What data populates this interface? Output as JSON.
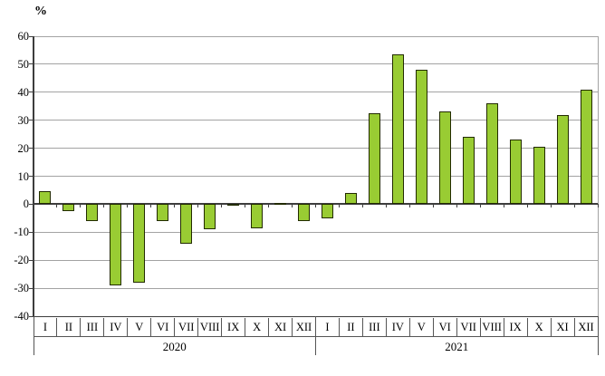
{
  "chart": {
    "unit_label": "%"
  },
  "chart_data": {
    "type": "bar",
    "title": "",
    "ylabel": "%",
    "xlabel": "",
    "ylim": [
      -40,
      60
    ],
    "yticks": [
      60,
      50,
      40,
      30,
      20,
      10,
      0,
      -10,
      -20,
      -30,
      -40
    ],
    "grid": true,
    "legend": "none",
    "categories": [
      "I",
      "II",
      "III",
      "IV",
      "V",
      "VI",
      "VII",
      "VIII",
      "IX",
      "X",
      "XI",
      "XII",
      "I",
      "II",
      "III",
      "IV",
      "V",
      "VI",
      "VII",
      "VIII",
      "IX",
      "X",
      "XI",
      "XII"
    ],
    "values": [
      4.5,
      -2.5,
      -6,
      -29,
      -28,
      -6,
      -14,
      -9,
      -0.3,
      -8.5,
      0.4,
      -6,
      -5,
      4,
      32.5,
      53.5,
      48,
      33,
      24,
      36,
      23,
      20.5,
      32,
      41
    ],
    "year_groups": [
      {
        "label": "2020",
        "start": 0,
        "count": 12
      },
      {
        "label": "2021",
        "start": 12,
        "count": 12
      }
    ],
    "colors": {
      "bar_fill": "#99CC33",
      "bar_border": "#222b00",
      "gridline": "#a3a3a3",
      "axis": "#3d3d3d",
      "text": "#000000"
    }
  }
}
